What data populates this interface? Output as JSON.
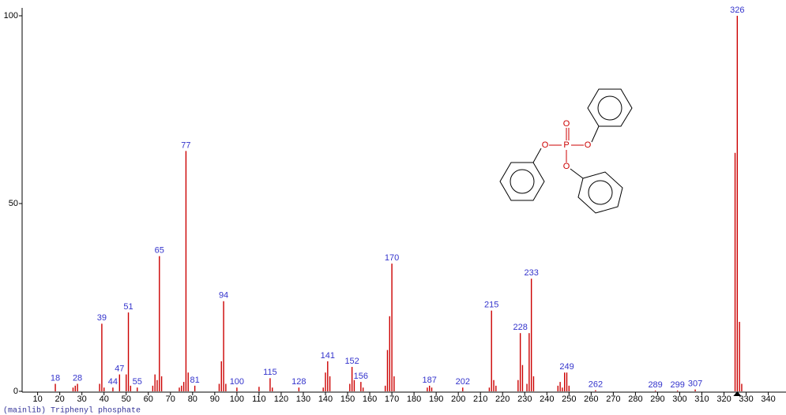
{
  "chart_data": {
    "type": "spectrum",
    "title": "(mainlib) Triphenyl phosphate",
    "x": [
      18,
      26,
      27,
      28,
      38,
      39,
      40,
      44,
      47,
      50,
      51,
      52,
      55,
      62,
      63,
      64,
      65,
      66,
      74,
      75,
      76,
      77,
      78,
      81,
      92,
      93,
      94,
      95,
      100,
      110,
      115,
      116,
      128,
      139,
      140,
      141,
      142,
      151,
      152,
      153,
      156,
      157,
      167,
      168,
      169,
      170,
      171,
      186,
      187,
      188,
      202,
      214,
      215,
      216,
      217,
      227,
      228,
      229,
      231,
      232,
      233,
      234,
      245,
      246,
      247,
      248,
      249,
      250,
      262,
      289,
      299,
      307,
      325,
      326,
      327,
      328
    ],
    "values": [
      2,
      1,
      1.5,
      2,
      2,
      18,
      1,
      1,
      4.5,
      4.5,
      21,
      1.5,
      1,
      1.5,
      4.5,
      3,
      36,
      4,
      1,
      1.5,
      2.5,
      64,
      5,
      1.5,
      2,
      8,
      24,
      2,
      1,
      1.2,
      3.5,
      1,
      1,
      1,
      5,
      8,
      4,
      2,
      6.5,
      3,
      2.5,
      1,
      1.5,
      11,
      20,
      34,
      4,
      1,
      1.5,
      1,
      1,
      1,
      21.5,
      3,
      1.5,
      3,
      15.5,
      7,
      2,
      15.5,
      30,
      4,
      1.5,
      2.5,
      1,
      5,
      5,
      1.5,
      0.3,
      0.2,
      0.2,
      0.5,
      63.5,
      100,
      18.5,
      2
    ],
    "peak_labels": [
      18,
      28,
      39,
      44,
      47,
      51,
      55,
      65,
      77,
      81,
      94,
      100,
      115,
      128,
      141,
      152,
      156,
      170,
      187,
      202,
      215,
      228,
      233,
      249,
      262,
      289,
      299,
      307,
      326
    ],
    "color": "#cc0000",
    "label_color": "#3333cc",
    "xlim": [
      3,
      348
    ],
    "xticks": [
      10,
      20,
      30,
      40,
      50,
      60,
      70,
      80,
      90,
      100,
      110,
      120,
      130,
      140,
      150,
      160,
      170,
      180,
      190,
      200,
      210,
      220,
      230,
      240,
      250,
      260,
      270,
      280,
      290,
      300,
      310,
      320,
      330,
      340
    ],
    "ylim": [
      0,
      100
    ],
    "yticks": [
      0,
      50,
      100
    ]
  },
  "structure": {
    "atoms": [
      "O",
      "P",
      "O",
      "O",
      "O"
    ]
  }
}
